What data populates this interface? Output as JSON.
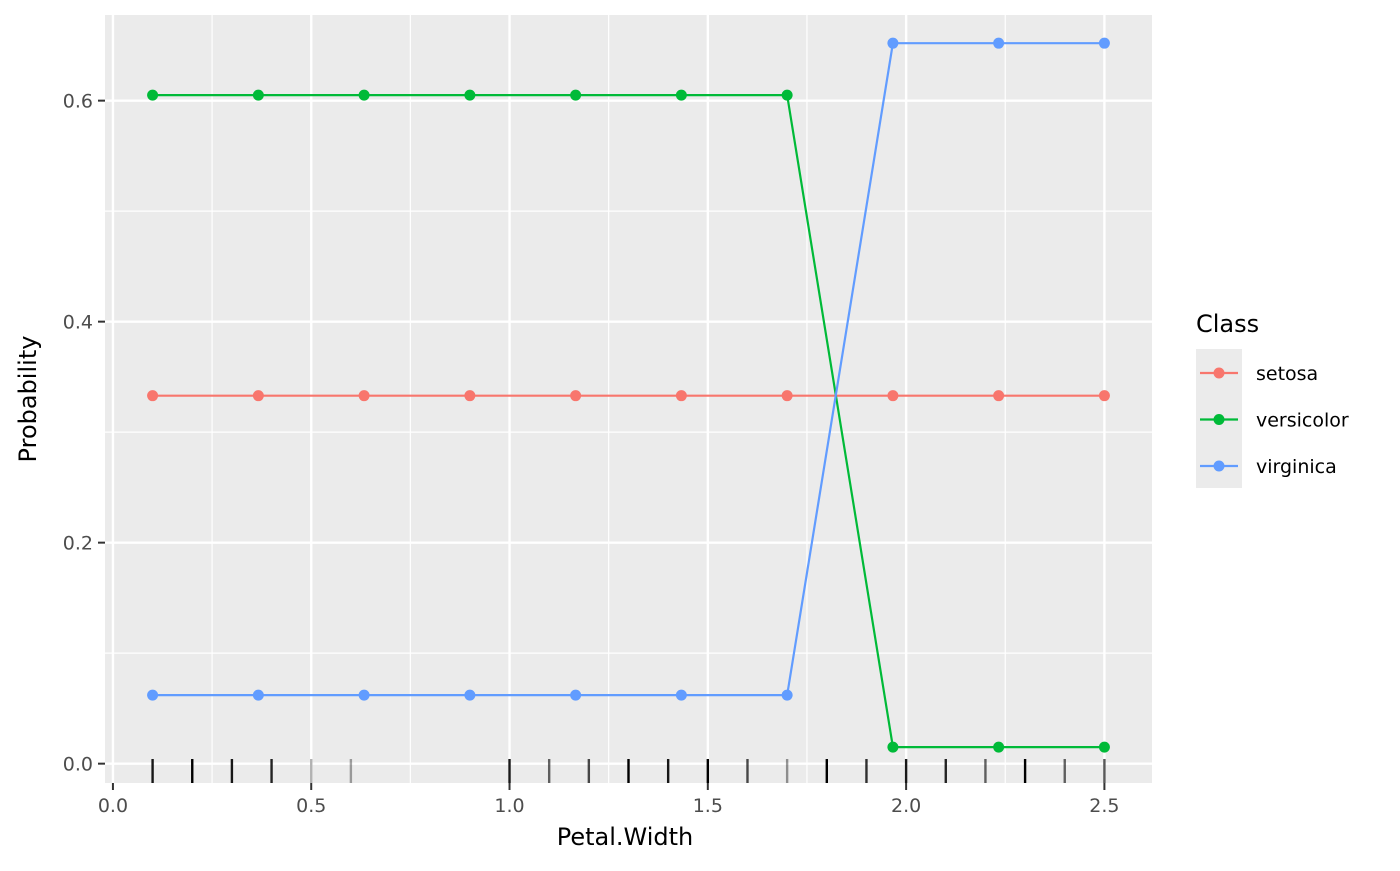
{
  "chart_data": {
    "type": "line",
    "xlabel": "Petal.Width",
    "ylabel": "Probability",
    "xlim": [
      -0.02,
      2.62
    ],
    "ylim": [
      -0.0175,
      0.6775
    ],
    "x_ticks": [
      "0.0",
      "0.5",
      "1.0",
      "1.5",
      "2.0",
      "2.5"
    ],
    "x_tick_values": [
      0.0,
      0.5,
      1.0,
      1.5,
      2.0,
      2.5
    ],
    "y_ticks": [
      "0.0",
      "0.2",
      "0.4",
      "0.6"
    ],
    "y_tick_values": [
      0.0,
      0.2,
      0.4,
      0.6
    ],
    "grid": true,
    "x": [
      0.1,
      0.3667,
      0.6333,
      0.9,
      1.1667,
      1.4333,
      1.7,
      1.9667,
      2.2333,
      2.5
    ],
    "series": [
      {
        "name": "setosa",
        "color": "#F8766D",
        "values": [
          0.333,
          0.333,
          0.333,
          0.333,
          0.333,
          0.333,
          0.333,
          0.333,
          0.333,
          0.333
        ]
      },
      {
        "name": "versicolor",
        "color": "#00BA38",
        "values": [
          0.605,
          0.605,
          0.605,
          0.605,
          0.605,
          0.605,
          0.605,
          0.015,
          0.015,
          0.015
        ]
      },
      {
        "name": "virginica",
        "color": "#619CFF",
        "values": [
          0.062,
          0.062,
          0.062,
          0.062,
          0.062,
          0.062,
          0.062,
          0.652,
          0.652,
          0.652
        ]
      }
    ],
    "legend": {
      "title": "Class",
      "position": "right"
    },
    "rug": [
      {
        "x": 0.1,
        "opacity": 0.9
      },
      {
        "x": 0.2,
        "opacity": 1.0
      },
      {
        "x": 0.3,
        "opacity": 0.9
      },
      {
        "x": 0.4,
        "opacity": 0.85
      },
      {
        "x": 0.5,
        "opacity": 0.3
      },
      {
        "x": 0.6,
        "opacity": 0.35
      },
      {
        "x": 1.0,
        "opacity": 0.9
      },
      {
        "x": 1.1,
        "opacity": 0.6
      },
      {
        "x": 1.2,
        "opacity": 0.7
      },
      {
        "x": 1.3,
        "opacity": 1.0
      },
      {
        "x": 1.4,
        "opacity": 0.9
      },
      {
        "x": 1.5,
        "opacity": 1.0
      },
      {
        "x": 1.6,
        "opacity": 0.7
      },
      {
        "x": 1.7,
        "opacity": 0.4
      },
      {
        "x": 1.8,
        "opacity": 1.0
      },
      {
        "x": 1.9,
        "opacity": 0.8
      },
      {
        "x": 2.0,
        "opacity": 0.9
      },
      {
        "x": 2.1,
        "opacity": 0.85
      },
      {
        "x": 2.2,
        "opacity": 0.6
      },
      {
        "x": 2.3,
        "opacity": 1.0
      },
      {
        "x": 2.4,
        "opacity": 0.6
      },
      {
        "x": 2.5,
        "opacity": 0.65
      }
    ]
  }
}
